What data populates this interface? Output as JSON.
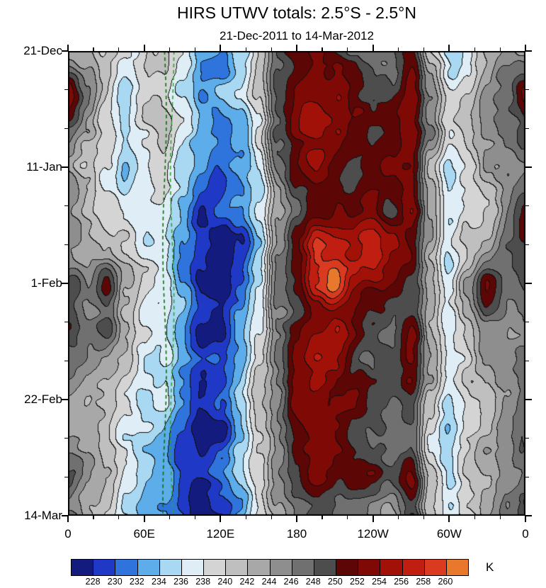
{
  "chart_data": {
    "type": "heatmap",
    "title": "HIRS UTWV totals: 2.5°S - 2.5°N",
    "subtitle": "21-Dec-2011 to 14-Mar-2012",
    "units": "K",
    "x": {
      "name": "longitude",
      "range_deg": [
        0,
        360
      ],
      "lon_step_deg": 15,
      "tick_labels": [
        "0",
        "60E",
        "120E",
        "180",
        "120W",
        "60W",
        "0"
      ],
      "major_tick_deg": [
        0,
        60,
        120,
        180,
        240,
        300,
        360
      ],
      "minor_tick_step_deg": 20
    },
    "y": {
      "name": "time",
      "start": "21-Dec-2011",
      "end": "14-Mar-2012",
      "range_days": [
        0,
        84
      ],
      "day_step": 7,
      "tick_labels": [
        "21-Dec",
        "11-Jan",
        "1-Feb",
        "22-Feb",
        "14-Mar"
      ],
      "major_tick_days": [
        0,
        21,
        42,
        63,
        84
      ],
      "minor_tick_step_days": 7
    },
    "levels": [
      228,
      230,
      232,
      234,
      236,
      238,
      240,
      242,
      244,
      246,
      248,
      250,
      252,
      254,
      256,
      258,
      260
    ],
    "colors": [
      "#141b7e",
      "#2038c6",
      "#2e74dc",
      "#5cade9",
      "#a8d8f2",
      "#dfeef6",
      "#d4d4d4",
      "#bfbfbf",
      "#a8a8a8",
      "#8e8e8e",
      "#707070",
      "#4d4d4d",
      "#5c0606",
      "#7f0a05",
      "#a21108",
      "#c01e10",
      "#da3a20",
      "#e8792c"
    ],
    "grid_note": "brightness temperature (K) on lon 0..360 step 15 (cols) x time 0..84 days step 7 (rows, 21-Dec-2011 top to 14-Mar-2012 bottom)",
    "grid": [
      [
        246,
        244,
        242,
        240,
        238,
        240,
        236,
        231,
        230,
        234,
        238,
        246,
        250,
        252,
        250,
        248,
        246,
        248,
        251,
        242,
        237,
        240,
        244,
        246,
        246
      ],
      [
        252,
        246,
        242,
        238,
        240,
        238,
        234,
        230,
        232,
        234,
        240,
        248,
        252,
        254,
        252,
        250,
        248,
        248,
        252,
        242,
        236,
        238,
        244,
        246,
        250
      ],
      [
        248,
        244,
        240,
        236,
        238,
        240,
        236,
        232,
        230,
        232,
        238,
        248,
        253,
        254,
        252,
        250,
        248,
        250,
        252,
        244,
        236,
        240,
        242,
        244,
        246
      ],
      [
        246,
        242,
        238,
        234,
        236,
        238,
        234,
        230,
        228,
        232,
        236,
        246,
        251,
        253,
        251,
        249,
        250,
        250,
        252,
        242,
        235,
        238,
        242,
        244,
        246
      ],
      [
        244,
        242,
        240,
        238,
        236,
        236,
        232,
        228,
        230,
        232,
        238,
        246,
        250,
        254,
        253,
        251,
        252,
        250,
        253,
        244,
        236,
        238,
        240,
        244,
        250
      ],
      [
        246,
        244,
        242,
        240,
        238,
        238,
        234,
        230,
        226,
        229,
        235,
        246,
        252,
        256,
        255,
        253,
        254,
        252,
        252,
        245,
        237,
        240,
        242,
        246,
        248
      ],
      [
        250,
        246,
        252,
        244,
        240,
        238,
        234,
        228,
        226,
        230,
        236,
        248,
        252,
        258,
        262,
        256,
        254,
        252,
        251,
        246,
        238,
        242,
        250,
        246,
        248
      ],
      [
        248,
        246,
        250,
        242,
        238,
        236,
        232,
        228,
        228,
        232,
        238,
        248,
        252,
        254,
        256,
        254,
        252,
        250,
        252,
        244,
        237,
        240,
        244,
        246,
        246
      ],
      [
        246,
        244,
        242,
        238,
        236,
        236,
        232,
        230,
        230,
        234,
        240,
        246,
        250,
        252,
        252,
        250,
        250,
        248,
        251,
        242,
        236,
        238,
        242,
        244,
        246
      ],
      [
        244,
        242,
        240,
        236,
        234,
        236,
        232,
        228,
        230,
        234,
        240,
        244,
        250,
        252,
        250,
        250,
        248,
        248,
        252,
        242,
        235,
        238,
        240,
        244,
        246
      ],
      [
        246,
        244,
        240,
        236,
        234,
        234,
        230,
        226,
        228,
        232,
        238,
        244,
        248,
        250,
        250,
        248,
        248,
        246,
        250,
        240,
        234,
        238,
        242,
        244,
        248
      ],
      [
        250,
        246,
        242,
        238,
        236,
        234,
        230,
        228,
        230,
        234,
        238,
        244,
        248,
        250,
        250,
        250,
        250,
        248,
        252,
        242,
        236,
        240,
        242,
        246,
        248
      ],
      [
        248,
        244,
        240,
        236,
        234,
        232,
        230,
        228,
        230,
        234,
        238,
        242,
        246,
        250,
        248,
        248,
        248,
        246,
        250,
        240,
        236,
        240,
        244,
        246,
        248
      ]
    ],
    "overlay_lines": [
      {
        "type": "dashed-vertical",
        "lon": 76,
        "color": "#0d6e0d"
      },
      {
        "type": "dashed-vertical",
        "lon": 82,
        "color": "#2fa32f"
      }
    ]
  }
}
